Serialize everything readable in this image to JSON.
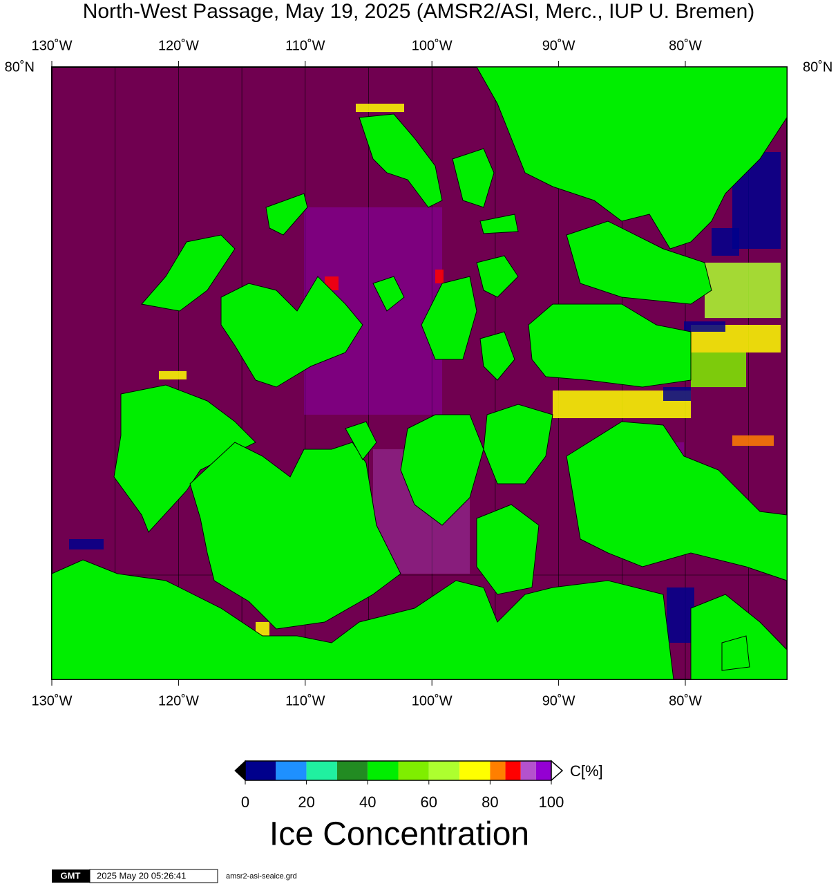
{
  "header": {
    "title": "North-West Passage, May 19, 2025 (AMSR2/ASI, Merc., IUP U. Bremen)"
  },
  "map": {
    "longitude_labels": [
      "130˚W",
      "120˚W",
      "110˚W",
      "100˚W",
      "90˚W",
      "80˚W"
    ],
    "latitude_label": "80˚N"
  },
  "colorbar": {
    "boundaries": [
      0,
      10,
      20,
      30,
      40,
      50,
      60,
      70,
      80,
      85,
      90,
      95,
      100
    ],
    "colors": [
      "#00008c",
      "#1e90ff",
      "#20f0a0",
      "#228b22",
      "#00ee00",
      "#7fee00",
      "#adff2f",
      "#ffff00",
      "#ff7f00",
      "#ff0000",
      "#b452cd",
      "#9400d3"
    ],
    "ticks": [
      0,
      20,
      40,
      60,
      80,
      100
    ],
    "unit": "C[%]",
    "label": "Ice Concentration"
  },
  "footer": {
    "logo": "GMT",
    "timestamp": "2025 May 20 05:26:41",
    "file": "amsr2-asi-seaice.grd"
  }
}
